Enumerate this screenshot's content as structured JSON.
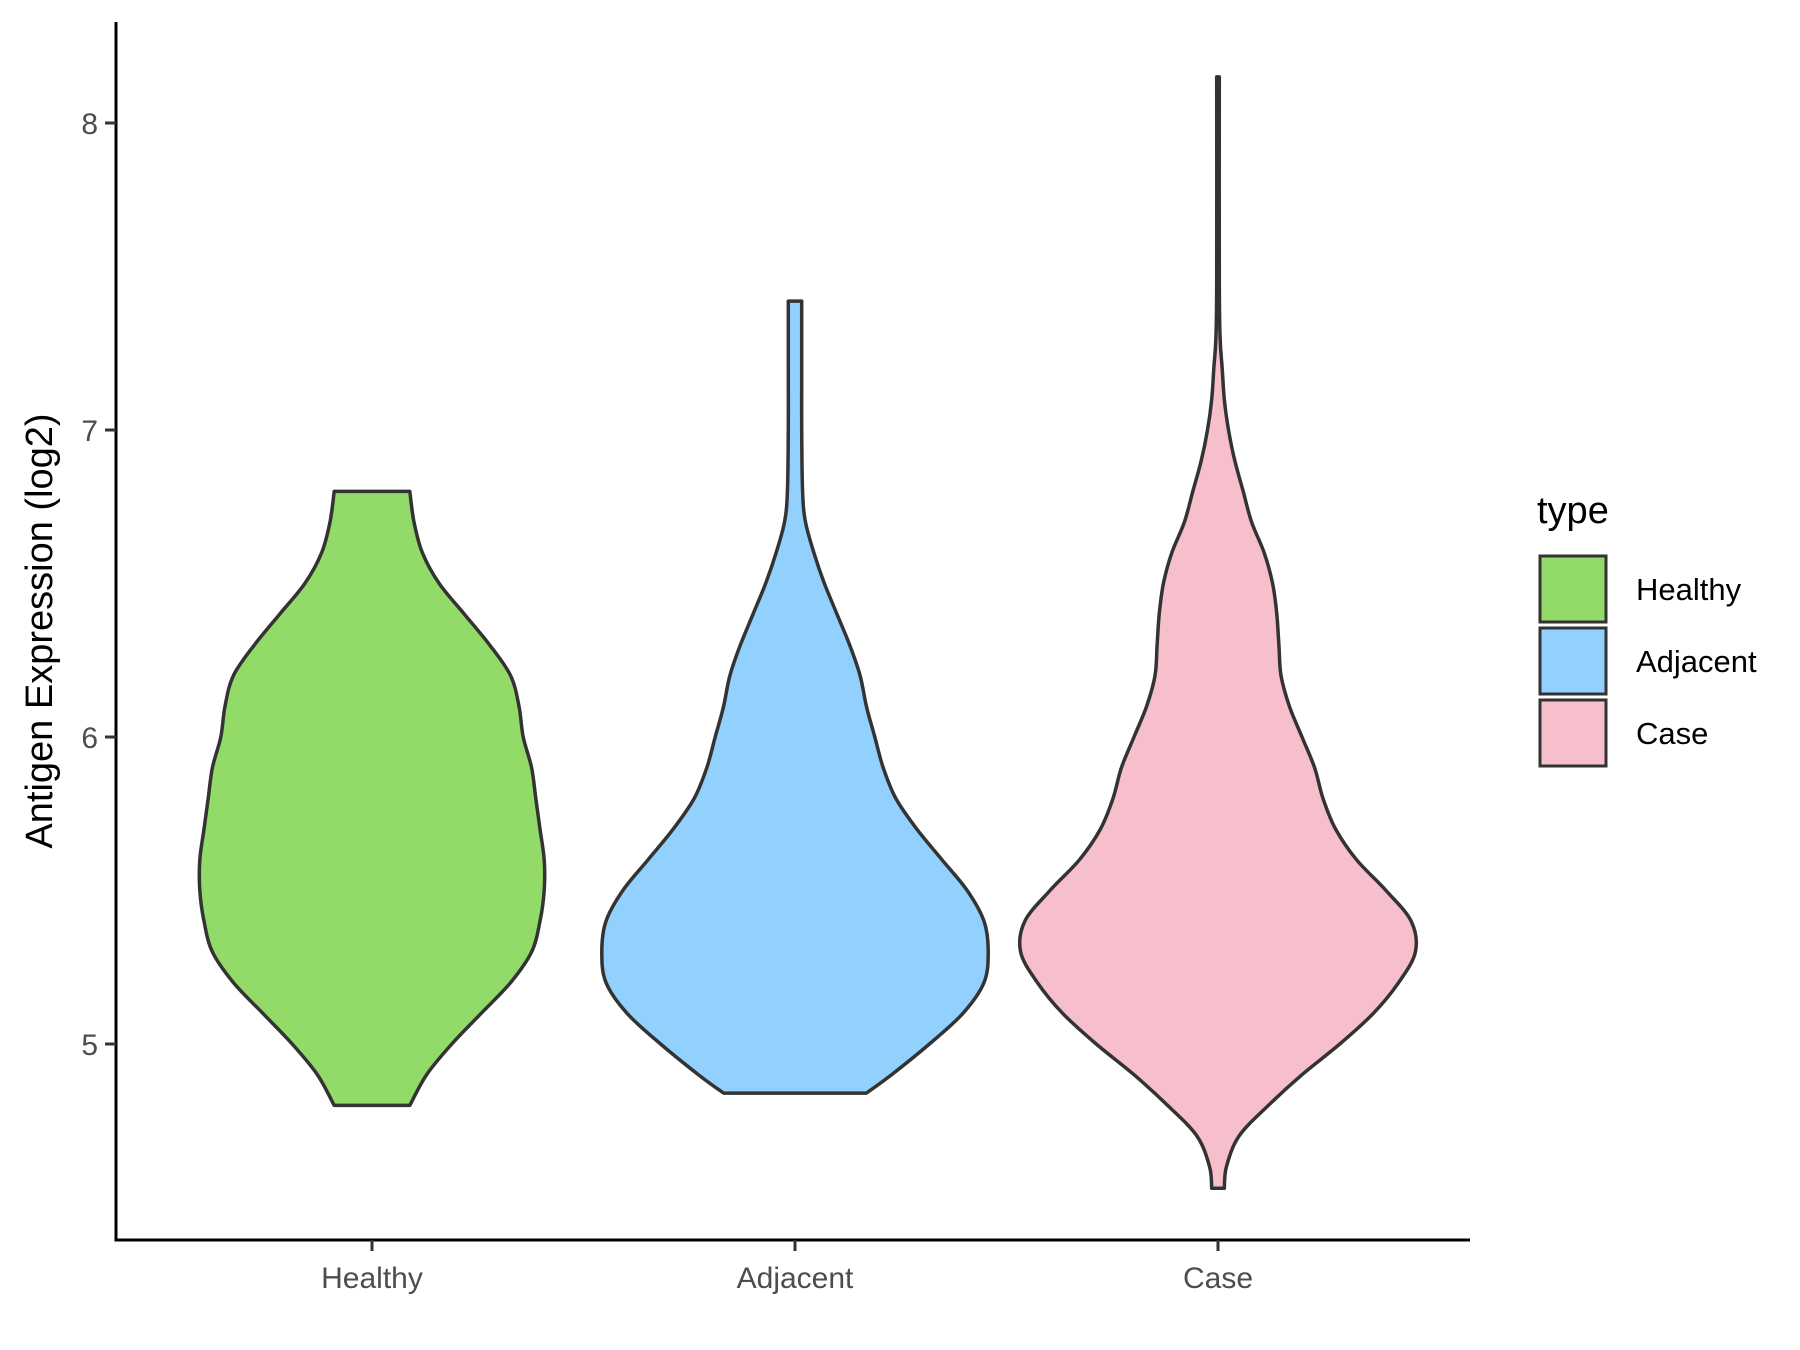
{
  "chart_data": {
    "type": "violin",
    "title": "",
    "xlabel": "",
    "ylabel": "Antigen Expression (log2)",
    "categories": [
      "Healthy",
      "Adjacent",
      "Case"
    ],
    "yticks": [
      "5",
      "6",
      "7",
      "8"
    ],
    "ylim": [
      4.45,
      8.35
    ],
    "grid": false,
    "legend": {
      "title": "type",
      "position": "right",
      "entries": [
        {
          "label": "Healthy",
          "color": "#93DB69"
        },
        {
          "label": "Adjacent",
          "color": "#92D1FE"
        },
        {
          "label": "Case",
          "color": "#F7BFCB"
        }
      ]
    },
    "outline_color": "#333333",
    "series": [
      {
        "name": "Healthy",
        "color": "#93DB69",
        "profile": [
          [
            4.8,
            0.09
          ],
          [
            4.9,
            0.13
          ],
          [
            5.0,
            0.19
          ],
          [
            5.1,
            0.26
          ],
          [
            5.2,
            0.33
          ],
          [
            5.3,
            0.38
          ],
          [
            5.4,
            0.4
          ],
          [
            5.5,
            0.41
          ],
          [
            5.6,
            0.41
          ],
          [
            5.7,
            0.4
          ],
          [
            5.8,
            0.39
          ],
          [
            5.9,
            0.38
          ],
          [
            6.0,
            0.36
          ],
          [
            6.1,
            0.35
          ],
          [
            6.2,
            0.33
          ],
          [
            6.3,
            0.28
          ],
          [
            6.4,
            0.22
          ],
          [
            6.5,
            0.16
          ],
          [
            6.6,
            0.12
          ],
          [
            6.7,
            0.1
          ],
          [
            6.8,
            0.09
          ]
        ]
      },
      {
        "name": "Adjacent",
        "color": "#92D1FE",
        "profile": [
          [
            4.84,
            0.17
          ],
          [
            4.9,
            0.23
          ],
          [
            5.0,
            0.32
          ],
          [
            5.1,
            0.4
          ],
          [
            5.2,
            0.45
          ],
          [
            5.3,
            0.46
          ],
          [
            5.4,
            0.45
          ],
          [
            5.5,
            0.41
          ],
          [
            5.6,
            0.35
          ],
          [
            5.7,
            0.29
          ],
          [
            5.8,
            0.24
          ],
          [
            5.9,
            0.21
          ],
          [
            6.0,
            0.19
          ],
          [
            6.1,
            0.17
          ],
          [
            6.2,
            0.155
          ],
          [
            6.3,
            0.13
          ],
          [
            6.4,
            0.1
          ],
          [
            6.5,
            0.07
          ],
          [
            6.6,
            0.045
          ],
          [
            6.7,
            0.025
          ],
          [
            6.8,
            0.018
          ],
          [
            7.0,
            0.016
          ],
          [
            7.2,
            0.016
          ],
          [
            7.42,
            0.016
          ]
        ]
      },
      {
        "name": "Case",
        "color": "#F7BFCB",
        "profile": [
          [
            4.53,
            0.015
          ],
          [
            4.6,
            0.02
          ],
          [
            4.7,
            0.05
          ],
          [
            4.8,
            0.12
          ],
          [
            4.9,
            0.2
          ],
          [
            5.0,
            0.29
          ],
          [
            5.1,
            0.37
          ],
          [
            5.2,
            0.43
          ],
          [
            5.3,
            0.47
          ],
          [
            5.4,
            0.46
          ],
          [
            5.5,
            0.4
          ],
          [
            5.6,
            0.33
          ],
          [
            5.7,
            0.28
          ],
          [
            5.8,
            0.25
          ],
          [
            5.9,
            0.23
          ],
          [
            6.0,
            0.2
          ],
          [
            6.1,
            0.17
          ],
          [
            6.2,
            0.15
          ],
          [
            6.3,
            0.145
          ],
          [
            6.4,
            0.14
          ],
          [
            6.5,
            0.13
          ],
          [
            6.6,
            0.11
          ],
          [
            6.7,
            0.08
          ],
          [
            6.8,
            0.06
          ],
          [
            6.9,
            0.04
          ],
          [
            7.0,
            0.025
          ],
          [
            7.1,
            0.015
          ],
          [
            7.2,
            0.01
          ],
          [
            7.3,
            0.005
          ],
          [
            7.5,
            0.003
          ],
          [
            8.15,
            0.003
          ]
        ]
      }
    ]
  }
}
